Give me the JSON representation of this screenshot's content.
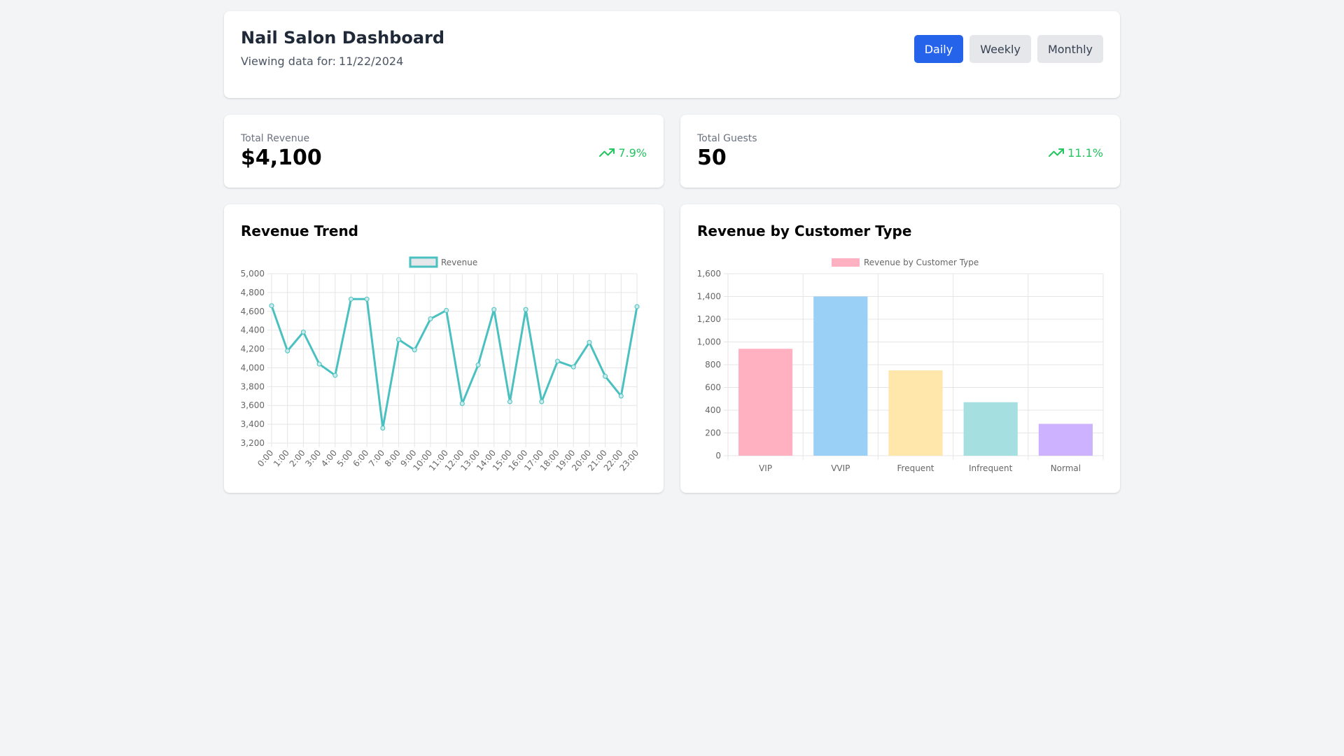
{
  "header": {
    "title": "Nail Salon Dashboard",
    "subtitle_prefix": "Viewing data for:",
    "date": "11/22/2024",
    "periods": [
      "Daily",
      "Weekly",
      "Monthly"
    ],
    "active_period": "Daily"
  },
  "stats": {
    "revenue": {
      "label": "Total Revenue",
      "value": "$4,100",
      "change": "7.9%",
      "icon": "trending-up-icon"
    },
    "guests": {
      "label": "Total Guests",
      "value": "50",
      "change": "11.1%",
      "icon": "trending-up-icon"
    }
  },
  "colors": {
    "primary": "#2563eb",
    "positive": "#22c55e",
    "line": "#4bc0c0"
  },
  "trend_chart": {
    "title": "Revenue Trend",
    "chart_data": {
      "type": "line",
      "series": [
        {
          "name": "Revenue",
          "values": [
            4660,
            4180,
            4380,
            4040,
            3920,
            4730,
            4730,
            3360,
            4300,
            4190,
            4520,
            4610,
            3620,
            4030,
            4620,
            3640,
            4620,
            3640,
            4070,
            4010,
            4270,
            3910,
            3700,
            4650
          ]
        }
      ],
      "categories": [
        "0:00",
        "1:00",
        "2:00",
        "3:00",
        "4:00",
        "5:00",
        "6:00",
        "7:00",
        "8:00",
        "9:00",
        "10:00",
        "11:00",
        "12:00",
        "13:00",
        "14:00",
        "15:00",
        "16:00",
        "17:00",
        "18:00",
        "19:00",
        "20:00",
        "21:00",
        "22:00",
        "23:00"
      ],
      "ylim": [
        3200,
        5000
      ],
      "yticks": [
        3200,
        3400,
        3600,
        3800,
        4000,
        4200,
        4400,
        4600,
        4800,
        5000
      ],
      "grid": true,
      "legend": "top"
    }
  },
  "type_chart": {
    "title": "Revenue by Customer Type",
    "chart_data": {
      "type": "bar",
      "categories": [
        "VIP",
        "VVIP",
        "Frequent",
        "Infrequent",
        "Normal"
      ],
      "series": [
        {
          "name": "Revenue by Customer Type",
          "values": [
            940,
            1400,
            750,
            470,
            280
          ]
        }
      ],
      "bar_colors": [
        "#ffb1c1",
        "#9ad0f5",
        "#ffe6aa",
        "#a5dfdf",
        "#ccb2ff"
      ],
      "ylim": [
        0,
        1600
      ],
      "yticks": [
        0,
        200,
        400,
        600,
        800,
        1000,
        1200,
        1400,
        1600
      ],
      "grid": true,
      "legend": "top"
    }
  }
}
